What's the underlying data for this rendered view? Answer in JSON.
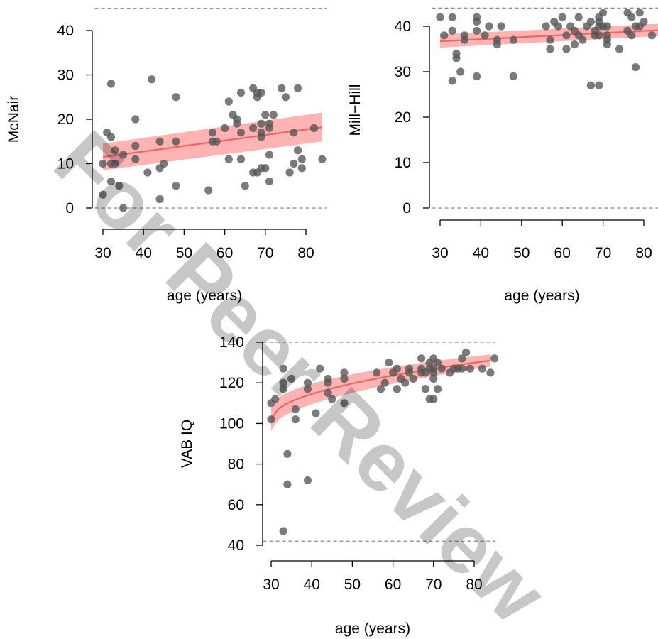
{
  "watermark": "For Peer Review",
  "colors": {
    "points": "#555555",
    "fit_line": "#ee6666",
    "ci_band": "#ff9a9a",
    "reference_lines": "#888888",
    "watermark": "#2aa7ea"
  },
  "chart_data": [
    {
      "type": "scatter",
      "xlabel": "age (years)",
      "ylabel": "McNair",
      "xlim": [
        27,
        85
      ],
      "ylim": [
        0,
        45
      ],
      "xticks": [
        30,
        40,
        50,
        60,
        70,
        80
      ],
      "yticks": [
        0,
        10,
        20,
        30,
        40
      ],
      "reference_lines": [
        0,
        45
      ],
      "fit": {
        "x": [
          30,
          84
        ],
        "y": [
          11.5,
          18.2
        ],
        "ci_lower": [
          8.5,
          15.0
        ],
        "ci_upper": [
          14.5,
          21.5
        ]
      },
      "points": [
        [
          30,
          3
        ],
        [
          30,
          10
        ],
        [
          31,
          17
        ],
        [
          32,
          10
        ],
        [
          32,
          16
        ],
        [
          32,
          28
        ],
        [
          32,
          6
        ],
        [
          33,
          10
        ],
        [
          33,
          13
        ],
        [
          34,
          5
        ],
        [
          35,
          12
        ],
        [
          35,
          0
        ],
        [
          38,
          20
        ],
        [
          38,
          14
        ],
        [
          38,
          11
        ],
        [
          41,
          8
        ],
        [
          42,
          29
        ],
        [
          44,
          2
        ],
        [
          44,
          9
        ],
        [
          44,
          15
        ],
        [
          45,
          10
        ],
        [
          48,
          25
        ],
        [
          48,
          15
        ],
        [
          48,
          5
        ],
        [
          56,
          4
        ],
        [
          57,
          17
        ],
        [
          57,
          15
        ],
        [
          58,
          15
        ],
        [
          60,
          18
        ],
        [
          61,
          24
        ],
        [
          61,
          11
        ],
        [
          62,
          21
        ],
        [
          63,
          20
        ],
        [
          63,
          19
        ],
        [
          64,
          26
        ],
        [
          64,
          17
        ],
        [
          64,
          11
        ],
        [
          65,
          5
        ],
        [
          67,
          27
        ],
        [
          67,
          18
        ],
        [
          67,
          8
        ],
        [
          68,
          26
        ],
        [
          68,
          25
        ],
        [
          68,
          8
        ],
        [
          69,
          26
        ],
        [
          69,
          19
        ],
        [
          69,
          17
        ],
        [
          69,
          16
        ],
        [
          69,
          9
        ],
        [
          70,
          21
        ],
        [
          70,
          9
        ],
        [
          71,
          19
        ],
        [
          71,
          18
        ],
        [
          71,
          12
        ],
        [
          71,
          6
        ],
        [
          72,
          21
        ],
        [
          74,
          27
        ],
        [
          75,
          25
        ],
        [
          76,
          8
        ],
        [
          77,
          17
        ],
        [
          77,
          10
        ],
        [
          78,
          27
        ],
        [
          78,
          13
        ],
        [
          79,
          11
        ],
        [
          79,
          9
        ],
        [
          82,
          18
        ],
        [
          84,
          11
        ]
      ]
    },
    {
      "type": "scatter",
      "xlabel": "age (years)",
      "ylabel": "Mill−Hill",
      "xlim": [
        27,
        85
      ],
      "ylim": [
        0,
        44
      ],
      "xticks": [
        30,
        40,
        50,
        60,
        70,
        80
      ],
      "yticks": [
        0,
        10,
        20,
        30,
        40
      ],
      "reference_lines": [
        0,
        44
      ],
      "fit": {
        "x": [
          30,
          85
        ],
        "y": [
          36.7,
          39.2
        ],
        "ci_lower": [
          35.3,
          37.9
        ],
        "ci_upper": [
          38.2,
          40.6
        ]
      },
      "points": [
        [
          30,
          42
        ],
        [
          31,
          38
        ],
        [
          33,
          42
        ],
        [
          33,
          39
        ],
        [
          33,
          28
        ],
        [
          34,
          34
        ],
        [
          34,
          33
        ],
        [
          35,
          30
        ],
        [
          36,
          38
        ],
        [
          36,
          37
        ],
        [
          39,
          42
        ],
        [
          39,
          41
        ],
        [
          39,
          39
        ],
        [
          39,
          29
        ],
        [
          41,
          38
        ],
        [
          42,
          40
        ],
        [
          44,
          37
        ],
        [
          44,
          36
        ],
        [
          45,
          40
        ],
        [
          48,
          37
        ],
        [
          48,
          29
        ],
        [
          56,
          40
        ],
        [
          57,
          37
        ],
        [
          57,
          35
        ],
        [
          58,
          41
        ],
        [
          59,
          40
        ],
        [
          60,
          42
        ],
        [
          61,
          38
        ],
        [
          61,
          35
        ],
        [
          62,
          40
        ],
        [
          63,
          39
        ],
        [
          63,
          36
        ],
        [
          64,
          42
        ],
        [
          64,
          38
        ],
        [
          65,
          37
        ],
        [
          66,
          40
        ],
        [
          67,
          41
        ],
        [
          67,
          27
        ],
        [
          68,
          39
        ],
        [
          68,
          38
        ],
        [
          69,
          42
        ],
        [
          69,
          41
        ],
        [
          69,
          40
        ],
        [
          69,
          38
        ],
        [
          69,
          27
        ],
        [
          70,
          43
        ],
        [
          70,
          40
        ],
        [
          71,
          38
        ],
        [
          71,
          37
        ],
        [
          71,
          36
        ],
        [
          71,
          40
        ],
        [
          74,
          35
        ],
        [
          76,
          43
        ],
        [
          76,
          39
        ],
        [
          77,
          42
        ],
        [
          77,
          38
        ],
        [
          78,
          40
        ],
        [
          78,
          31
        ],
        [
          79,
          43
        ],
        [
          79,
          40
        ],
        [
          80,
          41
        ],
        [
          82,
          38
        ],
        [
          85,
          42
        ]
      ]
    },
    {
      "type": "scatter",
      "xlabel": "age (years)",
      "ylabel": "VAB IQ",
      "xlim": [
        27,
        85
      ],
      "ylim": [
        40,
        140
      ],
      "xticks": [
        30,
        40,
        50,
        60,
        70,
        80
      ],
      "yticks": [
        40,
        60,
        80,
        100,
        120,
        140
      ],
      "reference_lines": [
        42,
        140
      ],
      "fit": {
        "x": [
          30,
          84
        ],
        "y": [
          102,
          131
        ],
        "ci_lower": [
          96,
          128
        ],
        "ci_upper": [
          107,
          134
        ]
      },
      "points": [
        [
          30,
          110
        ],
        [
          30,
          102
        ],
        [
          31,
          112
        ],
        [
          33,
          127
        ],
        [
          33,
          120
        ],
        [
          33,
          117
        ],
        [
          33,
          47
        ],
        [
          34,
          85
        ],
        [
          34,
          70
        ],
        [
          35,
          122
        ],
        [
          36,
          107
        ],
        [
          36,
          102
        ],
        [
          39,
          120
        ],
        [
          39,
          117
        ],
        [
          39,
          72
        ],
        [
          41,
          105
        ],
        [
          42,
          127
        ],
        [
          44,
          122
        ],
        [
          44,
          120
        ],
        [
          44,
          115
        ],
        [
          45,
          112
        ],
        [
          48,
          125
        ],
        [
          48,
          122
        ],
        [
          48,
          110
        ],
        [
          56,
          125
        ],
        [
          57,
          117
        ],
        [
          58,
          120
        ],
        [
          59,
          130
        ],
        [
          60,
          125
        ],
        [
          61,
          127
        ],
        [
          61,
          117
        ],
        [
          62,
          122
        ],
        [
          63,
          120
        ],
        [
          64,
          127
        ],
        [
          64,
          125
        ],
        [
          65,
          122
        ],
        [
          67,
          132
        ],
        [
          67,
          127
        ],
        [
          67,
          125
        ],
        [
          68,
          125
        ],
        [
          68,
          117
        ],
        [
          69,
          130
        ],
        [
          69,
          127
        ],
        [
          69,
          112
        ],
        [
          70,
          132
        ],
        [
          70,
          127
        ],
        [
          70,
          125
        ],
        [
          70,
          122
        ],
        [
          70,
          112
        ],
        [
          71,
          130
        ],
        [
          71,
          117
        ],
        [
          72,
          127
        ],
        [
          74,
          125
        ],
        [
          75,
          127
        ],
        [
          76,
          127
        ],
        [
          77,
          132
        ],
        [
          77,
          127
        ],
        [
          78,
          135
        ],
        [
          79,
          127
        ],
        [
          82,
          127
        ],
        [
          84,
          125
        ],
        [
          85,
          132
        ]
      ]
    }
  ]
}
